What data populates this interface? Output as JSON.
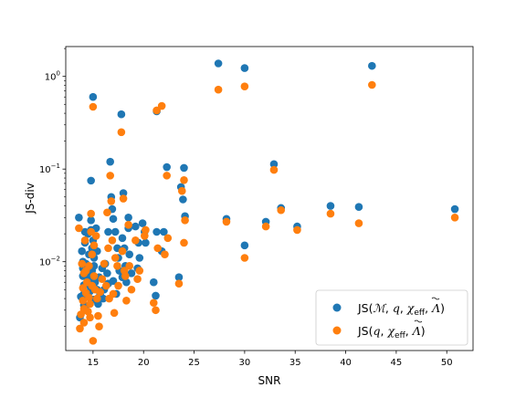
{
  "chart_data": {
    "type": "scatter",
    "xlabel": "SNR",
    "ylabel": "JS-div",
    "xlim": [
      12.3,
      52.6
    ],
    "ylim": [
      0.0011,
      2.1
    ],
    "yscale": "log",
    "x_ticks": [
      15,
      20,
      25,
      30,
      35,
      40,
      45,
      50
    ],
    "y_ticks": [
      {
        "value": 0.01,
        "base": "10",
        "exp": "−2"
      },
      {
        "value": 0.1,
        "base": "10",
        "exp": "−1"
      },
      {
        "value": 1,
        "base": "10",
        "exp": "0"
      }
    ],
    "legend_position": "lower right",
    "series": [
      {
        "name": "JS(ℳ, q, χeff, Λ̃)",
        "color": "#1f77b4",
        "points": [
          [
            13.6,
            0.03
          ],
          [
            13.7,
            0.0025
          ],
          [
            13.8,
            0.0042
          ],
          [
            13.9,
            0.013
          ],
          [
            14.0,
            0.01
          ],
          [
            14.0,
            0.0085
          ],
          [
            14.0,
            0.007
          ],
          [
            14.1,
            0.0056
          ],
          [
            14.1,
            0.0045
          ],
          [
            14.1,
            0.0034
          ],
          [
            14.2,
            0.021
          ],
          [
            14.2,
            0.016
          ],
          [
            14.3,
            0.0095
          ],
          [
            14.3,
            0.003
          ],
          [
            14.4,
            0.0075
          ],
          [
            14.5,
            0.02
          ],
          [
            14.6,
            0.012
          ],
          [
            14.6,
            0.0065
          ],
          [
            14.7,
            0.0055
          ],
          [
            14.7,
            0.0048
          ],
          [
            14.8,
            0.075
          ],
          [
            14.8,
            0.028
          ],
          [
            14.8,
            0.022
          ],
          [
            14.9,
            0.014
          ],
          [
            14.9,
            0.008
          ],
          [
            15.0,
            0.6
          ],
          [
            15.0,
            0.017
          ],
          [
            15.0,
            0.0039
          ],
          [
            15.1,
            0.011
          ],
          [
            15.1,
            0.009
          ],
          [
            15.2,
            0.006
          ],
          [
            15.3,
            0.023
          ],
          [
            15.4,
            0.013
          ],
          [
            15.4,
            0.005
          ],
          [
            15.5,
            0.0035
          ],
          [
            15.6,
            0.0068
          ],
          [
            15.7,
            0.0044
          ],
          [
            15.9,
            0.0085
          ],
          [
            16.0,
            0.004
          ],
          [
            16.1,
            0.005
          ],
          [
            16.2,
            0.0095
          ],
          [
            16.4,
            0.0075
          ],
          [
            16.5,
            0.021
          ],
          [
            16.5,
            0.0058
          ],
          [
            16.7,
            0.12
          ],
          [
            16.8,
            0.05
          ],
          [
            16.9,
            0.037
          ],
          [
            17.0,
            0.029
          ],
          [
            17.0,
            0.0062
          ],
          [
            17.2,
            0.021
          ],
          [
            17.3,
            0.0045
          ],
          [
            17.4,
            0.014
          ],
          [
            17.5,
            0.011
          ],
          [
            17.6,
            0.008
          ],
          [
            17.8,
            0.39
          ],
          [
            17.9,
            0.018
          ],
          [
            17.9,
            0.0068
          ],
          [
            18.0,
            0.055
          ],
          [
            18.1,
            0.014
          ],
          [
            18.2,
            0.009
          ],
          [
            18.3,
            0.006
          ],
          [
            18.5,
            0.03
          ],
          [
            18.5,
            0.023
          ],
          [
            18.6,
            0.012
          ],
          [
            18.8,
            0.0075
          ],
          [
            19.2,
            0.024
          ],
          [
            19.4,
            0.0085
          ],
          [
            19.5,
            0.016
          ],
          [
            19.6,
            0.011
          ],
          [
            19.9,
            0.026
          ],
          [
            20.1,
            0.021
          ],
          [
            20.2,
            0.016
          ],
          [
            21.0,
            0.006
          ],
          [
            21.2,
            0.0043
          ],
          [
            21.3,
            0.42
          ],
          [
            21.3,
            0.021
          ],
          [
            21.8,
            0.013
          ],
          [
            22.0,
            0.021
          ],
          [
            22.3,
            0.105
          ],
          [
            23.5,
            0.0068
          ],
          [
            23.7,
            0.064
          ],
          [
            23.9,
            0.047
          ],
          [
            24.0,
            0.103
          ],
          [
            24.1,
            0.031
          ],
          [
            27.4,
            1.38
          ],
          [
            28.2,
            0.029
          ],
          [
            30.0,
            1.23
          ],
          [
            30.0,
            0.015
          ],
          [
            32.1,
            0.027
          ],
          [
            32.9,
            0.113
          ],
          [
            33.6,
            0.038
          ],
          [
            35.2,
            0.024
          ],
          [
            38.5,
            0.04
          ],
          [
            41.3,
            0.039
          ],
          [
            42.6,
            1.3
          ],
          [
            50.8,
            0.037
          ]
        ]
      },
      {
        "name": "JS(q, χeff, Λ̃)",
        "color": "#ff7f0e",
        "points": [
          [
            13.6,
            0.023
          ],
          [
            13.7,
            0.0019
          ],
          [
            13.8,
            0.0027
          ],
          [
            13.9,
            0.0095
          ],
          [
            14.0,
            0.0052
          ],
          [
            14.0,
            0.0038
          ],
          [
            14.1,
            0.0075
          ],
          [
            14.1,
            0.0031
          ],
          [
            14.1,
            0.0022
          ],
          [
            14.2,
            0.017
          ],
          [
            14.3,
            0.008
          ],
          [
            14.3,
            0.0046
          ],
          [
            14.4,
            0.006
          ],
          [
            14.5,
            0.0029
          ],
          [
            14.6,
            0.009
          ],
          [
            14.6,
            0.0041
          ],
          [
            14.7,
            0.0035
          ],
          [
            14.7,
            0.0025
          ],
          [
            14.8,
            0.033
          ],
          [
            14.8,
            0.021
          ],
          [
            14.9,
            0.012
          ],
          [
            14.9,
            0.0055
          ],
          [
            15.0,
            0.47
          ],
          [
            15.0,
            0.0014
          ],
          [
            15.1,
            0.015
          ],
          [
            15.1,
            0.007
          ],
          [
            15.2,
            0.005
          ],
          [
            15.3,
            0.019
          ],
          [
            15.4,
            0.004
          ],
          [
            15.5,
            0.0026
          ],
          [
            15.6,
            0.002
          ],
          [
            15.7,
            0.0047
          ],
          [
            15.9,
            0.0065
          ],
          [
            16.1,
            0.0095
          ],
          [
            16.3,
            0.0055
          ],
          [
            16.4,
            0.034
          ],
          [
            16.5,
            0.014
          ],
          [
            16.6,
            0.004
          ],
          [
            16.7,
            0.085
          ],
          [
            16.8,
            0.045
          ],
          [
            16.9,
            0.017
          ],
          [
            17.0,
            0.0045
          ],
          [
            17.1,
            0.0028
          ],
          [
            17.2,
            0.011
          ],
          [
            17.4,
            0.009
          ],
          [
            17.5,
            0.0055
          ],
          [
            17.8,
            0.25
          ],
          [
            17.9,
            0.013
          ],
          [
            18.0,
            0.048
          ],
          [
            18.1,
            0.008
          ],
          [
            18.2,
            0.007
          ],
          [
            18.3,
            0.0038
          ],
          [
            18.5,
            0.025
          ],
          [
            18.6,
            0.009
          ],
          [
            18.8,
            0.005
          ],
          [
            19.2,
            0.017
          ],
          [
            19.4,
            0.0065
          ],
          [
            19.6,
            0.008
          ],
          [
            20.1,
            0.019
          ],
          [
            20.2,
            0.022
          ],
          [
            21.0,
            0.0036
          ],
          [
            21.2,
            0.003
          ],
          [
            21.3,
            0.43
          ],
          [
            21.4,
            0.014
          ],
          [
            21.8,
            0.48
          ],
          [
            22.1,
            0.012
          ],
          [
            22.3,
            0.085
          ],
          [
            22.4,
            0.018
          ],
          [
            23.5,
            0.0058
          ],
          [
            23.8,
            0.058
          ],
          [
            24.0,
            0.076
          ],
          [
            24.0,
            0.016
          ],
          [
            24.1,
            0.028
          ],
          [
            27.4,
            0.72
          ],
          [
            28.2,
            0.027
          ],
          [
            30.0,
            0.78
          ],
          [
            30.0,
            0.011
          ],
          [
            32.1,
            0.024
          ],
          [
            32.9,
            0.098
          ],
          [
            33.6,
            0.036
          ],
          [
            35.2,
            0.022
          ],
          [
            38.5,
            0.033
          ],
          [
            41.3,
            0.026
          ],
          [
            42.6,
            0.81
          ],
          [
            50.8,
            0.03
          ]
        ]
      }
    ]
  }
}
